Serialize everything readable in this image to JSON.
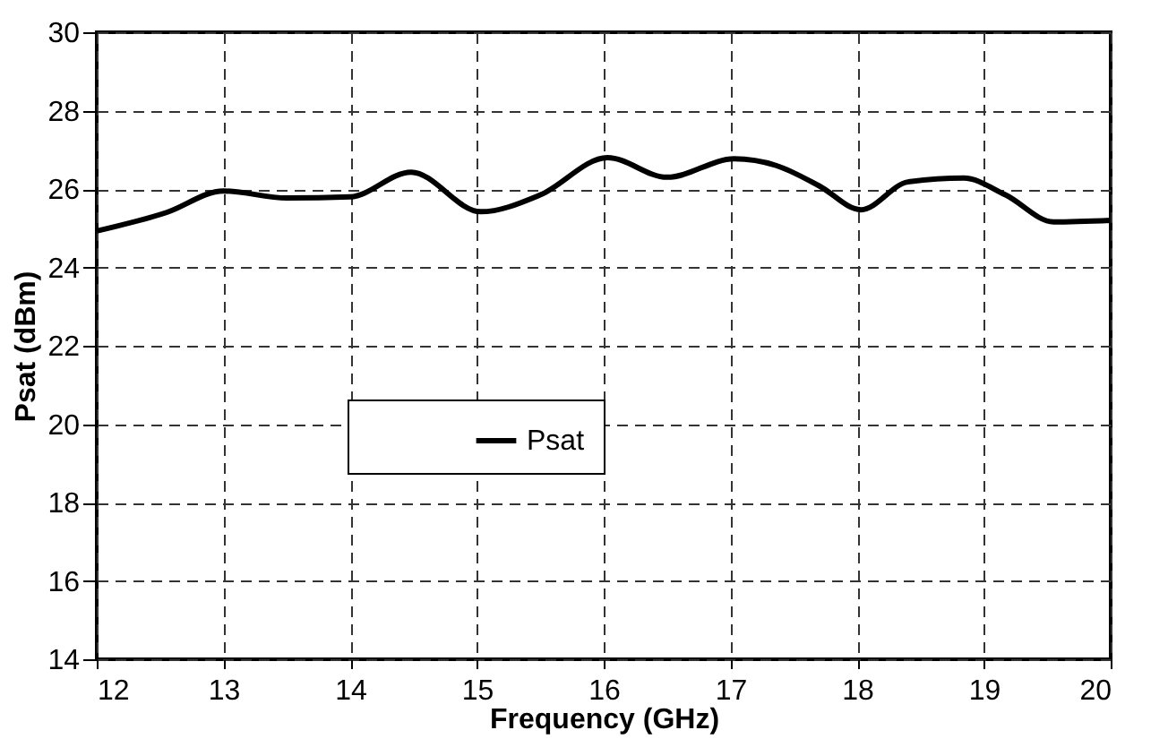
{
  "chart_data": {
    "type": "line",
    "xlabel": "Frequency (GHz)",
    "ylabel": "Psat (dBm)",
    "xlim": [
      12,
      20
    ],
    "ylim": [
      14,
      30
    ],
    "xticks": [
      12,
      13,
      14,
      15,
      16,
      17,
      18,
      19,
      20
    ],
    "yticks": [
      14,
      16,
      18,
      20,
      22,
      24,
      26,
      28,
      30
    ],
    "grid": true,
    "legend": "center",
    "marker": "none",
    "line_style": "solid",
    "x": [
      12,
      12.55,
      13,
      13.5,
      14,
      14.48,
      15.03,
      15.5,
      16.03,
      16.5,
      17.03,
      17.36,
      17.7,
      18.03,
      18.4,
      18.84,
      19.17,
      19.55,
      20
    ],
    "series": [
      {
        "name": "Psat",
        "color": "#000000",
        "values": [
          24.93,
          25.4,
          25.95,
          25.77,
          25.8,
          26.43,
          25.42,
          25.85,
          26.8,
          26.3,
          26.77,
          26.6,
          26.08,
          25.47,
          26.18,
          26.28,
          25.85,
          25.16,
          25.2
        ]
      }
    ]
  }
}
